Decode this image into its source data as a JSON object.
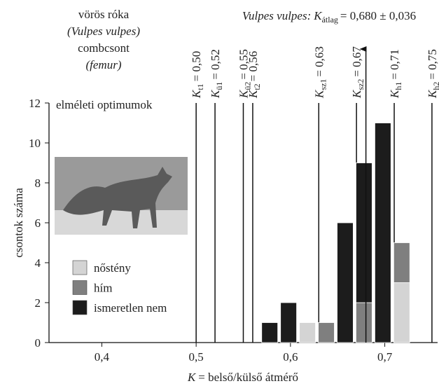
{
  "chart_data": {
    "type": "stacked_bar",
    "species": "vörös róka",
    "latin": "(Vulpes vulpes)",
    "bone": "combcsont",
    "bone_latin": "(femur)",
    "optimum_caption": "elméleti optimumok",
    "ylabel": "csontok száma",
    "xlabel": {
      "symbol": "K",
      "text": "= belső/külső átmérő"
    },
    "mean": {
      "value": 0.68,
      "species": "Vulpes vulpes:",
      "symbol": "K",
      "subscript": "átlag",
      "text": "= 0,680 ± 0,036"
    },
    "optima": [
      {
        "value": 0.5,
        "symbol": "K",
        "subscript": "t1",
        "text": "= 0,50"
      },
      {
        "value": 0.52,
        "symbol": "K",
        "subscript": "ü1",
        "text": "= 0,52"
      },
      {
        "value": 0.55,
        "symbol": "K",
        "subscript": "ü2",
        "text": "= 0,55"
      },
      {
        "value": 0.56,
        "symbol": "K",
        "subscript": "t2",
        "text": "= 0,56"
      },
      {
        "value": 0.63,
        "symbol": "K",
        "subscript": "sz1",
        "text": "= 0,63"
      },
      {
        "value": 0.67,
        "symbol": "K",
        "subscript": "sz2",
        "text": "= 0,67"
      },
      {
        "value": 0.71,
        "symbol": "K",
        "subscript": "h1",
        "text": "= 0,71"
      },
      {
        "value": 0.75,
        "symbol": "K",
        "subscript": "h2",
        "text": "= 0,75"
      }
    ],
    "x": [
      0.578,
      0.598,
      0.618,
      0.638,
      0.658,
      0.678,
      0.698,
      0.718
    ],
    "series": [
      {
        "name": "nőstény",
        "color": "#d4d4d4",
        "values": [
          0,
          0,
          1,
          0,
          0,
          0,
          0,
          3
        ]
      },
      {
        "name": "hím",
        "color": "#7f7f7f",
        "values": [
          0,
          0,
          0,
          1,
          0,
          2,
          0,
          2
        ]
      },
      {
        "name": "ismeretlen nem",
        "color": "#1c1c1c",
        "values": [
          1,
          2,
          0,
          0,
          6,
          7,
          11,
          0
        ]
      }
    ],
    "xlim": [
      0.344,
      0.756
    ],
    "ylim": [
      0,
      12
    ],
    "xticks": [
      {
        "value": 0.4,
        "label": "0,4"
      },
      {
        "value": 0.5,
        "label": "0,5"
      },
      {
        "value": 0.6,
        "label": "0,6"
      },
      {
        "value": 0.7,
        "label": "0,7"
      }
    ],
    "yticks": [
      0,
      2,
      4,
      6,
      8,
      10,
      12
    ]
  }
}
